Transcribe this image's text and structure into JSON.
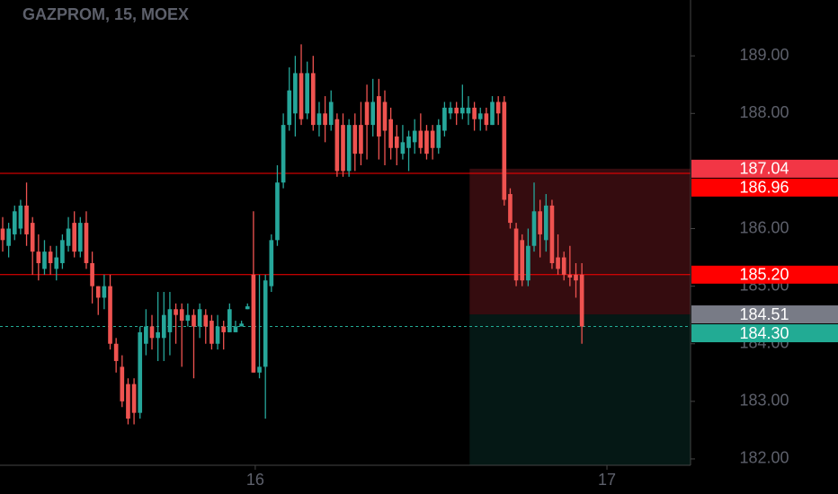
{
  "chart_data": {
    "type": "candlestick",
    "title": "GAZPROM, 15, MOEX",
    "up_color": "#26a69a",
    "down_color": "#ef5350",
    "open": [
      186.0,
      185.7,
      185.9,
      186.0,
      186.4,
      186.1,
      185.6,
      185.3,
      185.6,
      185.3,
      185.4,
      185.7,
      186.1,
      185.6,
      186.1,
      185.4,
      185.0,
      184.8,
      185.0,
      184.0,
      183.6,
      183.3,
      183.3,
      182.8,
      184.0,
      184.3,
      184.1,
      184.1,
      184.2,
      184.6,
      184.6,
      184.4,
      184.5,
      184.3,
      184.5,
      184.4,
      184.0,
      184.3,
      184.2,
      184.2,
      184.3,
      184.6,
      185.2,
      183.5,
      183.6,
      185.0,
      185.8,
      186.8,
      187.8,
      188.0,
      188.7,
      188.0,
      188.7,
      187.8,
      188.0,
      187.8,
      187.9,
      187.8,
      187.0,
      187.8,
      187.8,
      188.2,
      187.8,
      188.3,
      188.2,
      187.9,
      187.6,
      187.3,
      187.4,
      187.5,
      187.7,
      187.7,
      187.7,
      187.4,
      187.7,
      188.0,
      188.1,
      188.0,
      188.0,
      188.1,
      187.9,
      188.0,
      187.8,
      188.2,
      188.2,
      186.6,
      186.0,
      185.8,
      185.1,
      185.7,
      186.3,
      185.8,
      186.4,
      185.5,
      185.5,
      185.2,
      185.2,
      185.2
    ],
    "high": [
      186.2,
      186.1,
      186.4,
      186.5,
      186.8,
      186.2,
      185.9,
      185.8,
      185.7,
      185.7,
      185.9,
      186.2,
      186.3,
      186.2,
      186.3,
      185.6,
      185.0,
      185.2,
      185.2,
      184.1,
      183.8,
      183.4,
      183.4,
      184.3,
      184.6,
      184.5,
      184.9,
      184.9,
      184.9,
      184.7,
      184.7,
      184.7,
      184.6,
      184.7,
      184.6,
      184.5,
      184.5,
      184.4,
      184.7,
      184.4,
      184.4,
      184.7,
      186.3,
      185.2,
      185.2,
      185.9,
      187.1,
      188.0,
      188.8,
      189.0,
      189.2,
      188.9,
      189.0,
      188.2,
      188.3,
      188.4,
      188.0,
      188.0,
      187.9,
      188.0,
      188.2,
      188.5,
      188.6,
      188.6,
      188.4,
      188.1,
      187.8,
      187.8,
      187.7,
      187.9,
      188.0,
      187.8,
      187.8,
      187.9,
      188.2,
      188.2,
      188.2,
      188.5,
      188.3,
      188.2,
      188.1,
      188.1,
      188.3,
      188.3,
      188.3,
      186.7,
      186.1,
      185.9,
      186.0,
      186.8,
      186.5,
      186.6,
      186.5,
      185.9,
      185.6,
      185.7,
      185.4,
      185.4
    ],
    "low": [
      185.6,
      185.5,
      185.8,
      185.9,
      185.7,
      185.2,
      185.1,
      185.2,
      185.2,
      185.1,
      185.3,
      185.6,
      185.5,
      185.5,
      185.3,
      184.7,
      184.5,
      184.6,
      183.9,
      183.5,
      182.9,
      182.6,
      182.6,
      182.7,
      183.8,
      183.9,
      183.7,
      183.7,
      183.8,
      184.0,
      183.6,
      184.3,
      183.4,
      184.1,
      184.0,
      183.9,
      183.9,
      183.9,
      184.2,
      184.2,
      184.3,
      184.6,
      183.5,
      183.4,
      182.7,
      184.9,
      185.7,
      186.7,
      187.7,
      187.6,
      187.8,
      187.9,
      187.7,
      187.6,
      187.5,
      187.7,
      186.9,
      186.9,
      186.9,
      187.0,
      187.1,
      187.2,
      187.6,
      187.2,
      187.1,
      187.2,
      187.1,
      187.2,
      187.0,
      187.3,
      187.3,
      187.2,
      187.2,
      187.3,
      187.6,
      187.9,
      187.8,
      187.9,
      187.8,
      187.7,
      187.7,
      187.7,
      187.8,
      187.8,
      186.4,
      186.0,
      185.0,
      185.0,
      185.0,
      185.6,
      185.5,
      185.6,
      185.3,
      185.2,
      185.1,
      185.0,
      184.8,
      184.0
    ],
    "close": [
      185.8,
      186.0,
      186.3,
      186.4,
      185.9,
      185.6,
      185.4,
      185.6,
      185.4,
      185.5,
      185.8,
      186.0,
      185.6,
      186.1,
      185.4,
      185.0,
      184.8,
      185.0,
      184.0,
      183.7,
      183.0,
      182.7,
      182.8,
      184.2,
      184.3,
      184.1,
      184.2,
      184.5,
      184.6,
      184.5,
      184.4,
      184.5,
      184.3,
      184.6,
      184.3,
      184.0,
      184.3,
      184.2,
      184.6,
      184.3,
      184.35,
      184.65,
      183.5,
      183.6,
      185.1,
      185.8,
      186.8,
      187.8,
      188.4,
      188.7,
      187.9,
      188.7,
      187.8,
      188.0,
      187.8,
      188.2,
      187.0,
      187.0,
      187.8,
      187.3,
      187.3,
      187.8,
      188.2,
      187.6,
      187.7,
      187.4,
      187.4,
      187.5,
      187.6,
      187.7,
      187.4,
      187.3,
      187.4,
      187.8,
      188.1,
      188.1,
      188.0,
      188.1,
      188.1,
      187.9,
      188.0,
      187.8,
      188.2,
      188.0,
      186.5,
      186.1,
      185.1,
      185.1,
      185.7,
      186.3,
      185.9,
      186.4,
      185.4,
      185.3,
      185.2,
      185.15,
      185.1,
      184.3
    ],
    "xlim": [
      -0.45,
      115.2
    ],
    "xticks": [
      {
        "value": 42.3,
        "label": "16"
      },
      {
        "value": 101.2,
        "label": "17"
      }
    ],
    "ylim": [
      181.89,
      189.97
    ],
    "yticks": [
      {
        "value": 182,
        "label": "182.00"
      },
      {
        "value": 183,
        "label": "183.00"
      },
      {
        "value": 184,
        "label": "184.00"
      },
      {
        "value": 185,
        "label": "185.00"
      },
      {
        "value": 186,
        "label": "186.00"
      },
      {
        "value": 188,
        "label": "188.00"
      },
      {
        "value": 189,
        "label": "189.00"
      }
    ],
    "position": {
      "start": 78.2,
      "stop": {
        "value": 187.04,
        "label": "187.04",
        "color": "#f23645"
      },
      "entry": {
        "value": 184.51,
        "label": "184.51",
        "color": "#787b86"
      }
    },
    "levels": [
      {
        "value": 186.96,
        "label": "186.96",
        "color": "#ff0000"
      },
      {
        "value": 185.2,
        "label": "185.20",
        "color": "#ff0000"
      }
    ],
    "last_price": {
      "value": 184.3,
      "label": "184.30",
      "color": "#22ab94"
    }
  }
}
